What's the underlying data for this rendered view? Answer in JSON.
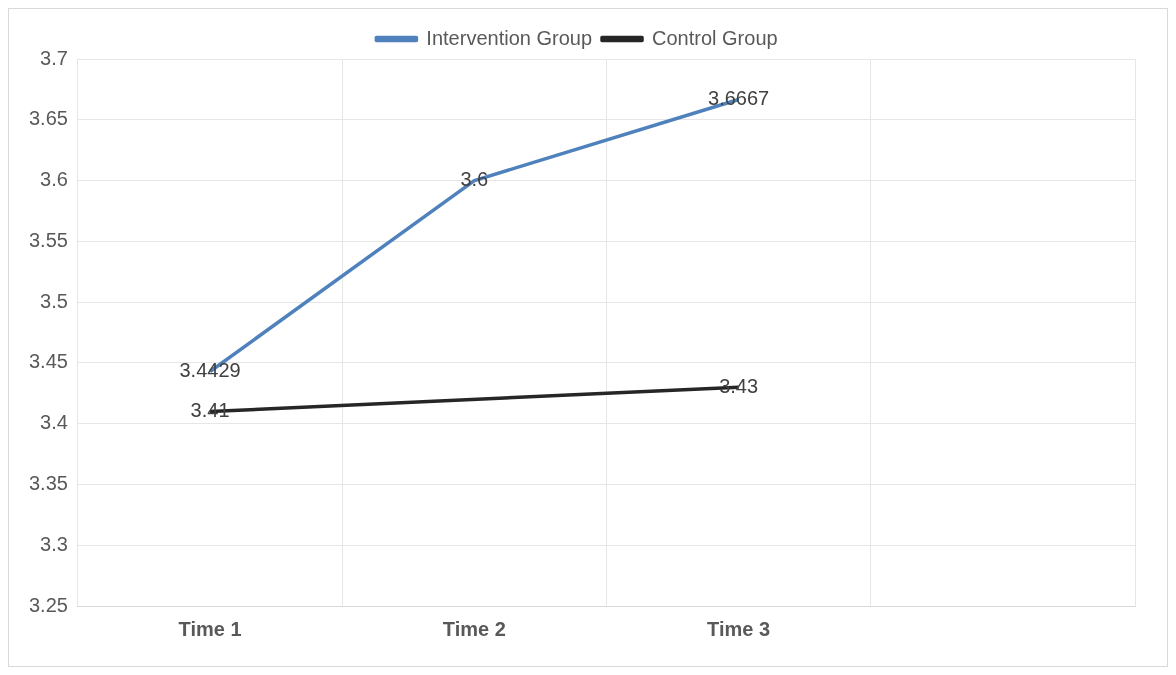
{
  "chart_data": {
    "type": "line",
    "categories": [
      "Time 1",
      "Time 2",
      "Time 3",
      null
    ],
    "series": [
      {
        "name": "Intervention Group",
        "color": "#4f81bd",
        "values": [
          3.4429,
          3.6,
          3.6667,
          null
        ]
      },
      {
        "name": "Control Group",
        "color": "#262626",
        "values": [
          3.41,
          null,
          3.43,
          null
        ]
      }
    ],
    "ylim": [
      3.25,
      3.7
    ],
    "yticks": [
      3.25,
      3.3,
      3.35,
      3.4,
      3.45,
      3.5,
      3.55,
      3.6,
      3.65,
      3.7
    ],
    "grid": true,
    "legend": "top",
    "data_labels": true,
    "marker": "none",
    "line_style": "solid"
  }
}
